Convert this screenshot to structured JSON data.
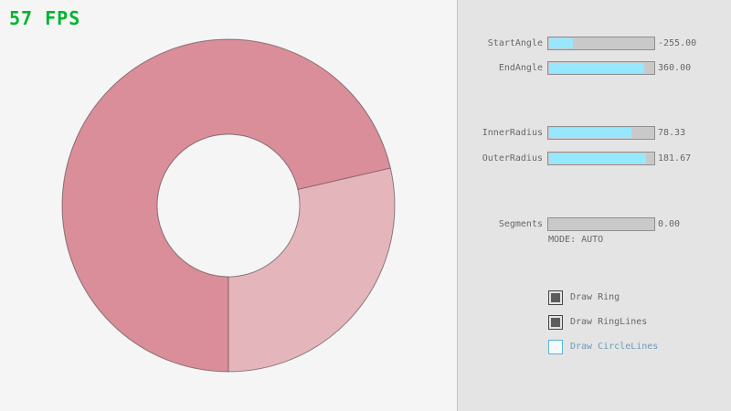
{
  "fps": {
    "label": "57 FPS",
    "color": "#00b32f"
  },
  "ring": {
    "overlap_color": "#d98e99",
    "base_color": "#e5b5bc",
    "line_color": "rgba(0,0,0,0.4)"
  },
  "panel": {
    "sliders": [
      {
        "label": "StartAngle",
        "value": "-255.00",
        "fill_percent": 22
      },
      {
        "label": "EndAngle",
        "value": "360.00",
        "fill_percent": 90
      },
      {
        "label": "InnerRadius",
        "value": "78.33",
        "fill_percent": 78
      },
      {
        "label": "OuterRadius",
        "value": "181.67",
        "fill_percent": 91
      },
      {
        "label": "Segments",
        "value": "0.00",
        "fill_percent": 0
      }
    ],
    "mode_label": "MODE: AUTO",
    "checkboxes": [
      {
        "label": "Draw Ring",
        "checked": true
      },
      {
        "label": "Draw RingLines",
        "checked": true
      },
      {
        "label": "Draw CircleLines",
        "checked": false
      }
    ]
  }
}
